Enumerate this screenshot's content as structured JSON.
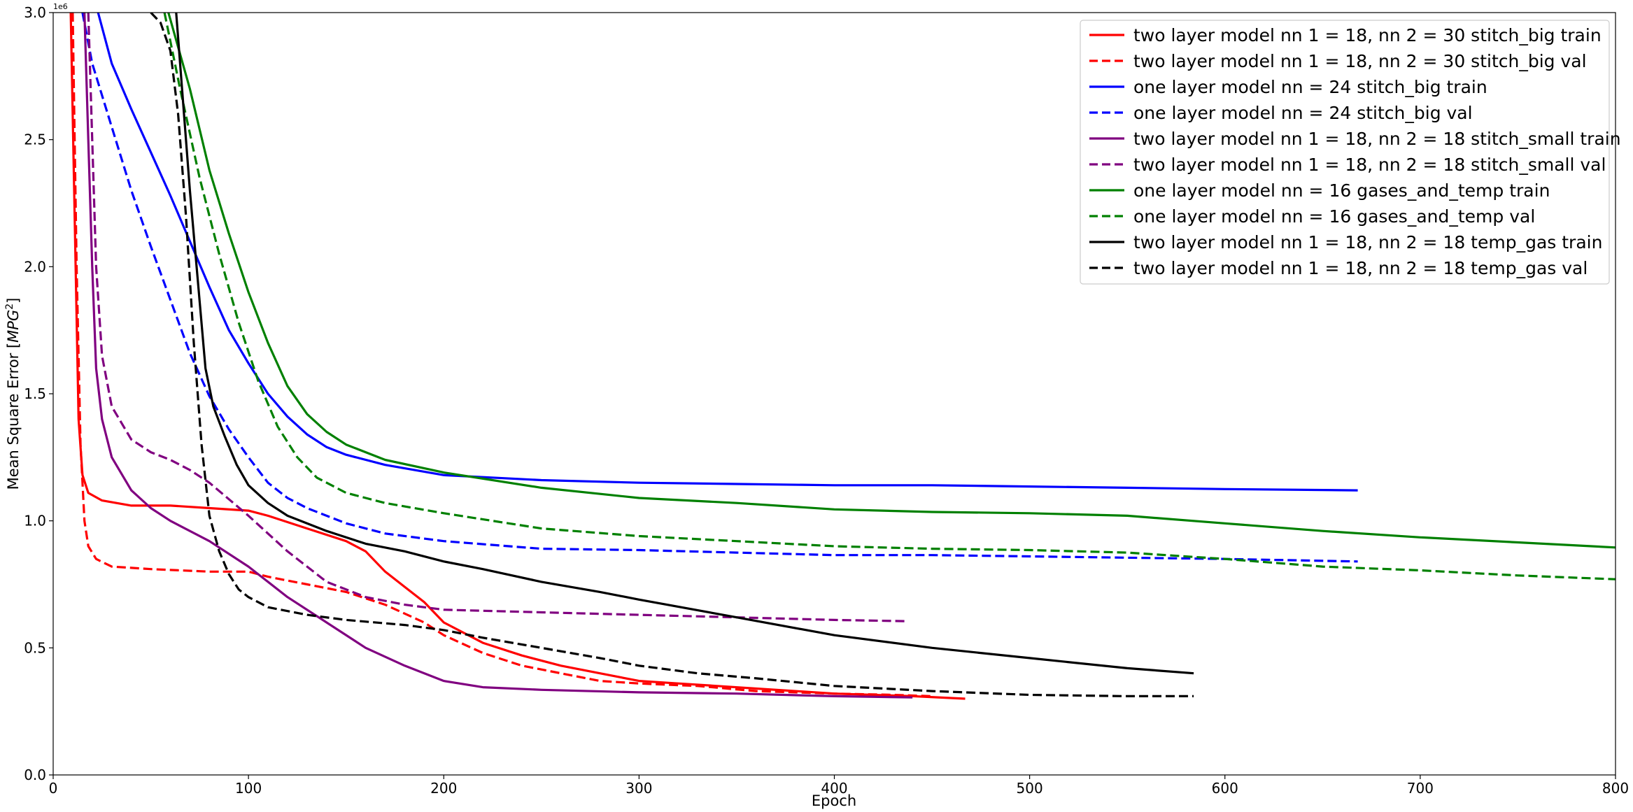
{
  "chart_data": {
    "type": "line",
    "title": "",
    "xlabel": "Epoch",
    "ylabel": "Mean Square Error [MPG²]",
    "ylabel_parts": {
      "main": "Mean Square Error [",
      "var": "MPG",
      "sup": "2",
      "end": "]"
    },
    "y_offset_text": "1e6",
    "xlim": [
      0,
      800
    ],
    "ylim": [
      0,
      3.0
    ],
    "y_scale": 1000000,
    "xticks": [
      0,
      100,
      200,
      300,
      400,
      500,
      600,
      700,
      800
    ],
    "xtick_labels": [
      "0",
      "100",
      "200",
      "300",
      "400",
      "500",
      "600",
      "700",
      "800"
    ],
    "yticks": [
      0,
      0.5,
      1.0,
      1.5,
      2.0,
      2.5,
      3.0
    ],
    "ytick_labels": [
      "0.0",
      "0.5",
      "1.0",
      "1.5",
      "2.0",
      "2.5",
      "3.0"
    ],
    "grid": false,
    "legend_position": "top-right",
    "series": [
      {
        "name": "two layer model nn 1 = 18, nn 2 = 30 stitch_big train",
        "color": "#ff0000",
        "dashed": false,
        "points": [
          [
            9,
            3.0
          ],
          [
            11,
            2.2
          ],
          [
            13,
            1.4
          ],
          [
            15,
            1.18
          ],
          [
            18,
            1.11
          ],
          [
            25,
            1.08
          ],
          [
            40,
            1.06
          ],
          [
            60,
            1.06
          ],
          [
            80,
            1.05
          ],
          [
            100,
            1.04
          ],
          [
            110,
            1.02
          ],
          [
            130,
            0.97
          ],
          [
            150,
            0.92
          ],
          [
            160,
            0.88
          ],
          [
            170,
            0.8
          ],
          [
            180,
            0.74
          ],
          [
            190,
            0.68
          ],
          [
            200,
            0.6
          ],
          [
            220,
            0.52
          ],
          [
            240,
            0.47
          ],
          [
            260,
            0.43
          ],
          [
            280,
            0.4
          ],
          [
            300,
            0.37
          ],
          [
            320,
            0.36
          ],
          [
            340,
            0.35
          ],
          [
            360,
            0.34
          ],
          [
            380,
            0.33
          ],
          [
            400,
            0.32
          ],
          [
            420,
            0.315
          ],
          [
            440,
            0.31
          ],
          [
            467,
            0.3
          ]
        ]
      },
      {
        "name": "two layer model nn 1 = 18, nn 2 = 30 stitch_big val",
        "color": "#ff0000",
        "dashed": true,
        "points": [
          [
            10,
            3.0
          ],
          [
            12,
            2.0
          ],
          [
            14,
            1.3
          ],
          [
            16,
            1.0
          ],
          [
            18,
            0.9
          ],
          [
            22,
            0.85
          ],
          [
            30,
            0.82
          ],
          [
            50,
            0.81
          ],
          [
            80,
            0.8
          ],
          [
            100,
            0.8
          ],
          [
            110,
            0.78
          ],
          [
            130,
            0.75
          ],
          [
            150,
            0.72
          ],
          [
            170,
            0.67
          ],
          [
            190,
            0.6
          ],
          [
            200,
            0.55
          ],
          [
            220,
            0.48
          ],
          [
            240,
            0.43
          ],
          [
            260,
            0.4
          ],
          [
            280,
            0.37
          ],
          [
            300,
            0.36
          ],
          [
            330,
            0.35
          ],
          [
            360,
            0.33
          ],
          [
            400,
            0.32
          ],
          [
            430,
            0.315
          ],
          [
            450,
            0.31
          ]
        ]
      },
      {
        "name": "one layer model nn = 24 stitch_big train",
        "color": "#0000ff",
        "dashed": false,
        "points": [
          [
            23,
            3.0
          ],
          [
            30,
            2.8
          ],
          [
            40,
            2.62
          ],
          [
            50,
            2.45
          ],
          [
            60,
            2.28
          ],
          [
            70,
            2.1
          ],
          [
            80,
            1.92
          ],
          [
            90,
            1.75
          ],
          [
            100,
            1.62
          ],
          [
            110,
            1.5
          ],
          [
            120,
            1.41
          ],
          [
            130,
            1.34
          ],
          [
            140,
            1.29
          ],
          [
            150,
            1.26
          ],
          [
            170,
            1.22
          ],
          [
            200,
            1.18
          ],
          [
            250,
            1.16
          ],
          [
            300,
            1.15
          ],
          [
            350,
            1.145
          ],
          [
            400,
            1.14
          ],
          [
            450,
            1.14
          ],
          [
            500,
            1.135
          ],
          [
            550,
            1.13
          ],
          [
            600,
            1.125
          ],
          [
            668,
            1.12
          ]
        ]
      },
      {
        "name": "one layer model nn = 24 stitch_big val",
        "color": "#0000ff",
        "dashed": true,
        "points": [
          [
            15,
            3.0
          ],
          [
            20,
            2.8
          ],
          [
            30,
            2.55
          ],
          [
            40,
            2.3
          ],
          [
            50,
            2.08
          ],
          [
            60,
            1.87
          ],
          [
            70,
            1.66
          ],
          [
            80,
            1.49
          ],
          [
            90,
            1.36
          ],
          [
            100,
            1.25
          ],
          [
            110,
            1.15
          ],
          [
            120,
            1.09
          ],
          [
            130,
            1.05
          ],
          [
            150,
            0.99
          ],
          [
            170,
            0.95
          ],
          [
            200,
            0.92
          ],
          [
            250,
            0.89
          ],
          [
            300,
            0.885
          ],
          [
            350,
            0.875
          ],
          [
            400,
            0.865
          ],
          [
            450,
            0.865
          ],
          [
            500,
            0.86
          ],
          [
            550,
            0.855
          ],
          [
            600,
            0.85
          ],
          [
            668,
            0.84
          ]
        ]
      },
      {
        "name": "two layer model nn 1 = 18, nn 2 = 18 stitch_small train",
        "color": "#800080",
        "dashed": false,
        "points": [
          [
            16,
            3.0
          ],
          [
            18,
            2.5
          ],
          [
            20,
            2.0
          ],
          [
            22,
            1.6
          ],
          [
            25,
            1.4
          ],
          [
            30,
            1.25
          ],
          [
            40,
            1.12
          ],
          [
            50,
            1.05
          ],
          [
            60,
            1.0
          ],
          [
            80,
            0.92
          ],
          [
            100,
            0.82
          ],
          [
            120,
            0.7
          ],
          [
            140,
            0.6
          ],
          [
            160,
            0.5
          ],
          [
            180,
            0.43
          ],
          [
            200,
            0.37
          ],
          [
            220,
            0.345
          ],
          [
            250,
            0.335
          ],
          [
            300,
            0.325
          ],
          [
            350,
            0.32
          ],
          [
            400,
            0.31
          ],
          [
            440,
            0.305
          ]
        ]
      },
      {
        "name": "two layer model nn 1 = 18, nn 2 = 18 stitch_small val",
        "color": "#800080",
        "dashed": true,
        "points": [
          [
            18,
            3.0
          ],
          [
            20,
            2.5
          ],
          [
            22,
            2.0
          ],
          [
            25,
            1.65
          ],
          [
            30,
            1.45
          ],
          [
            40,
            1.32
          ],
          [
            50,
            1.27
          ],
          [
            60,
            1.24
          ],
          [
            70,
            1.2
          ],
          [
            80,
            1.15
          ],
          [
            100,
            1.02
          ],
          [
            120,
            0.88
          ],
          [
            140,
            0.76
          ],
          [
            160,
            0.7
          ],
          [
            180,
            0.67
          ],
          [
            200,
            0.65
          ],
          [
            250,
            0.64
          ],
          [
            300,
            0.63
          ],
          [
            350,
            0.62
          ],
          [
            400,
            0.61
          ],
          [
            438,
            0.605
          ]
        ]
      },
      {
        "name": "one layer model nn = 16 gases_and_temp train",
        "color": "#008000",
        "dashed": false,
        "points": [
          [
            59,
            3.0
          ],
          [
            70,
            2.7
          ],
          [
            80,
            2.38
          ],
          [
            90,
            2.13
          ],
          [
            100,
            1.9
          ],
          [
            110,
            1.7
          ],
          [
            120,
            1.53
          ],
          [
            130,
            1.42
          ],
          [
            140,
            1.35
          ],
          [
            150,
            1.3
          ],
          [
            170,
            1.24
          ],
          [
            200,
            1.19
          ],
          [
            250,
            1.13
          ],
          [
            300,
            1.09
          ],
          [
            350,
            1.07
          ],
          [
            400,
            1.045
          ],
          [
            450,
            1.035
          ],
          [
            500,
            1.03
          ],
          [
            550,
            1.02
          ],
          [
            600,
            0.99
          ],
          [
            650,
            0.96
          ],
          [
            700,
            0.935
          ],
          [
            750,
            0.915
          ],
          [
            800,
            0.895
          ]
        ]
      },
      {
        "name": "one layer model nn = 16 gases_and_temp val",
        "color": "#008000",
        "dashed": true,
        "points": [
          [
            57,
            3.0
          ],
          [
            65,
            2.7
          ],
          [
            75,
            2.35
          ],
          [
            85,
            2.05
          ],
          [
            95,
            1.78
          ],
          [
            105,
            1.55
          ],
          [
            115,
            1.37
          ],
          [
            125,
            1.25
          ],
          [
            135,
            1.17
          ],
          [
            150,
            1.11
          ],
          [
            170,
            1.07
          ],
          [
            200,
            1.03
          ],
          [
            250,
            0.97
          ],
          [
            300,
            0.94
          ],
          [
            350,
            0.92
          ],
          [
            400,
            0.9
          ],
          [
            450,
            0.89
          ],
          [
            500,
            0.885
          ],
          [
            550,
            0.875
          ],
          [
            600,
            0.85
          ],
          [
            650,
            0.82
          ],
          [
            700,
            0.805
          ],
          [
            750,
            0.785
          ],
          [
            800,
            0.77
          ]
        ]
      },
      {
        "name": "two layer model nn 1 = 18, nn 2 = 18 temp_gas train",
        "color": "#000000",
        "dashed": false,
        "points": [
          [
            63,
            3.0
          ],
          [
            66,
            2.7
          ],
          [
            70,
            2.3
          ],
          [
            74,
            1.95
          ],
          [
            78,
            1.6
          ],
          [
            82,
            1.45
          ],
          [
            88,
            1.33
          ],
          [
            94,
            1.22
          ],
          [
            100,
            1.14
          ],
          [
            110,
            1.07
          ],
          [
            120,
            1.02
          ],
          [
            140,
            0.96
          ],
          [
            160,
            0.91
          ],
          [
            180,
            0.88
          ],
          [
            200,
            0.84
          ],
          [
            220,
            0.81
          ],
          [
            250,
            0.76
          ],
          [
            280,
            0.72
          ],
          [
            300,
            0.69
          ],
          [
            350,
            0.62
          ],
          [
            400,
            0.55
          ],
          [
            450,
            0.5
          ],
          [
            500,
            0.46
          ],
          [
            550,
            0.42
          ],
          [
            584,
            0.4
          ]
        ]
      },
      {
        "name": "two layer model nn 1 = 18, nn 2 = 18 temp_gas val",
        "color": "#000000",
        "dashed": true,
        "points": [
          [
            50,
            3.0
          ],
          [
            55,
            2.96
          ],
          [
            60,
            2.85
          ],
          [
            64,
            2.6
          ],
          [
            68,
            2.2
          ],
          [
            72,
            1.7
          ],
          [
            76,
            1.3
          ],
          [
            80,
            1.02
          ],
          [
            85,
            0.88
          ],
          [
            90,
            0.79
          ],
          [
            95,
            0.73
          ],
          [
            100,
            0.7
          ],
          [
            110,
            0.66
          ],
          [
            130,
            0.63
          ],
          [
            150,
            0.61
          ],
          [
            180,
            0.59
          ],
          [
            200,
            0.57
          ],
          [
            220,
            0.54
          ],
          [
            250,
            0.5
          ],
          [
            280,
            0.46
          ],
          [
            300,
            0.43
          ],
          [
            330,
            0.4
          ],
          [
            360,
            0.38
          ],
          [
            400,
            0.35
          ],
          [
            450,
            0.33
          ],
          [
            500,
            0.315
          ],
          [
            550,
            0.31
          ],
          [
            584,
            0.31
          ]
        ]
      }
    ]
  }
}
